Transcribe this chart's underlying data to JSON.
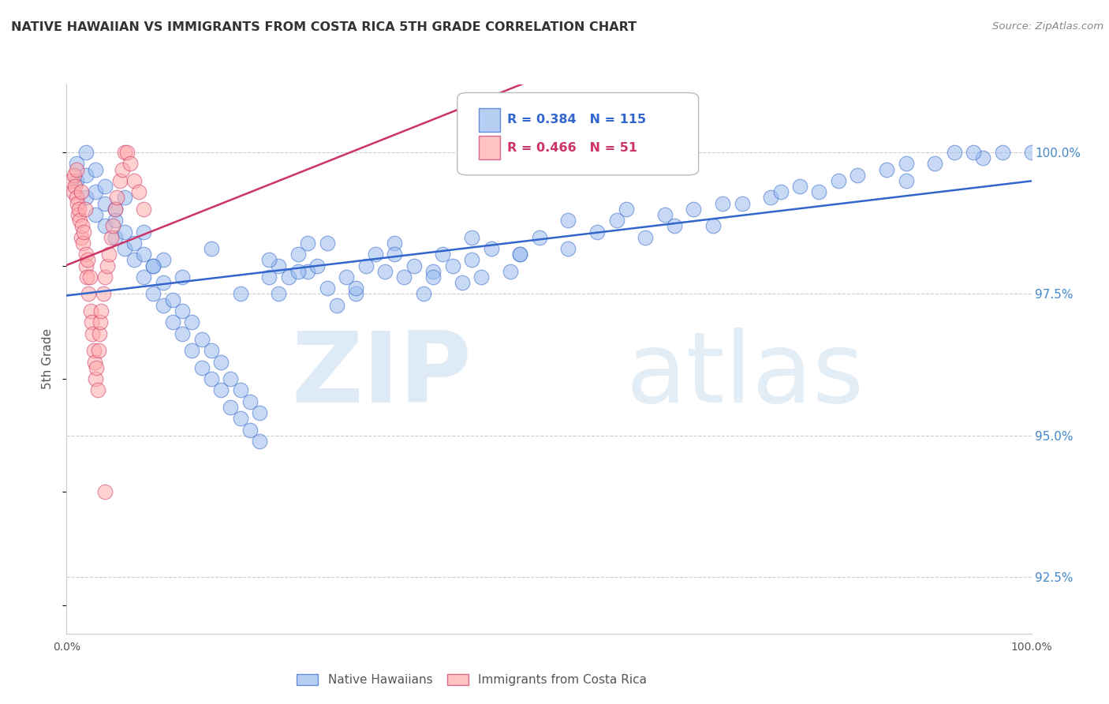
{
  "title": "NATIVE HAWAIIAN VS IMMIGRANTS FROM COSTA RICA 5TH GRADE CORRELATION CHART",
  "source": "Source: ZipAtlas.com",
  "ylabel": "5th Grade",
  "yticks": [
    92.5,
    95.0,
    97.5,
    100.0
  ],
  "xlim": [
    0.0,
    1.0
  ],
  "ylim": [
    91.5,
    101.2
  ],
  "blue_color": "#99BBEE",
  "pink_color": "#FFAAAA",
  "trendline_blue": "#3366CC",
  "trendline_pink": "#CC3366",
  "legend_text_blue": "#3366CC",
  "legend_text_pink": "#CC3366",
  "R_blue": 0.384,
  "N_blue": 115,
  "R_pink": 0.466,
  "N_pink": 51,
  "blue_scatter_x": [
    0.01,
    0.01,
    0.02,
    0.02,
    0.02,
    0.03,
    0.03,
    0.03,
    0.04,
    0.04,
    0.04,
    0.05,
    0.05,
    0.05,
    0.06,
    0.06,
    0.06,
    0.07,
    0.07,
    0.08,
    0.08,
    0.08,
    0.09,
    0.09,
    0.1,
    0.1,
    0.1,
    0.11,
    0.11,
    0.12,
    0.12,
    0.13,
    0.13,
    0.14,
    0.14,
    0.15,
    0.15,
    0.16,
    0.16,
    0.17,
    0.17,
    0.18,
    0.18,
    0.19,
    0.19,
    0.2,
    0.2,
    0.21,
    0.22,
    0.22,
    0.23,
    0.24,
    0.25,
    0.25,
    0.26,
    0.27,
    0.28,
    0.29,
    0.3,
    0.31,
    0.32,
    0.33,
    0.34,
    0.35,
    0.36,
    0.37,
    0.38,
    0.39,
    0.4,
    0.41,
    0.42,
    0.43,
    0.44,
    0.46,
    0.47,
    0.49,
    0.52,
    0.55,
    0.57,
    0.6,
    0.62,
    0.65,
    0.67,
    0.7,
    0.73,
    0.76,
    0.78,
    0.82,
    0.85,
    0.87,
    0.9,
    0.92,
    0.95,
    0.97,
    1.0,
    0.09,
    0.12,
    0.15,
    0.18,
    0.21,
    0.24,
    0.27,
    0.3,
    0.34,
    0.38,
    0.42,
    0.47,
    0.52,
    0.58,
    0.63,
    0.68,
    0.74,
    0.8,
    0.87,
    0.94
  ],
  "blue_scatter_y": [
    99.5,
    99.8,
    99.2,
    99.6,
    100.0,
    99.3,
    99.7,
    98.9,
    99.1,
    99.4,
    98.7,
    99.0,
    98.5,
    98.8,
    98.3,
    98.6,
    99.2,
    98.1,
    98.4,
    97.8,
    98.2,
    98.6,
    97.5,
    98.0,
    97.3,
    97.7,
    98.1,
    97.0,
    97.4,
    96.8,
    97.2,
    96.5,
    97.0,
    96.2,
    96.7,
    96.0,
    96.5,
    95.8,
    96.3,
    95.5,
    96.0,
    95.3,
    95.8,
    95.1,
    95.6,
    94.9,
    95.4,
    97.8,
    98.0,
    97.5,
    97.8,
    98.2,
    97.9,
    98.4,
    98.0,
    97.6,
    97.3,
    97.8,
    97.5,
    98.0,
    98.2,
    97.9,
    98.4,
    97.8,
    98.0,
    97.5,
    97.9,
    98.2,
    98.0,
    97.7,
    98.1,
    97.8,
    98.3,
    97.9,
    98.2,
    98.5,
    98.3,
    98.6,
    98.8,
    98.5,
    98.9,
    99.0,
    98.7,
    99.1,
    99.2,
    99.4,
    99.3,
    99.6,
    99.7,
    99.5,
    99.8,
    100.0,
    99.9,
    100.0,
    100.0,
    98.0,
    97.8,
    98.3,
    97.5,
    98.1,
    97.9,
    98.4,
    97.6,
    98.2,
    97.8,
    98.5,
    98.2,
    98.8,
    99.0,
    98.7,
    99.1,
    99.3,
    99.5,
    99.8,
    100.0
  ],
  "pink_scatter_x": [
    0.005,
    0.007,
    0.008,
    0.009,
    0.01,
    0.01,
    0.011,
    0.012,
    0.013,
    0.014,
    0.015,
    0.015,
    0.016,
    0.017,
    0.018,
    0.019,
    0.02,
    0.02,
    0.021,
    0.022,
    0.023,
    0.024,
    0.025,
    0.026,
    0.027,
    0.028,
    0.029,
    0.03,
    0.031,
    0.032,
    0.033,
    0.034,
    0.035,
    0.036,
    0.038,
    0.04,
    0.042,
    0.044,
    0.046,
    0.048,
    0.05,
    0.052,
    0.055,
    0.058,
    0.06,
    0.063,
    0.066,
    0.07,
    0.075,
    0.08,
    0.04
  ],
  "pink_scatter_y": [
    99.5,
    99.3,
    99.6,
    99.4,
    99.2,
    99.7,
    99.1,
    98.9,
    99.0,
    98.8,
    99.3,
    98.5,
    98.7,
    98.4,
    98.6,
    99.0,
    98.2,
    98.0,
    97.8,
    98.1,
    97.5,
    97.8,
    97.2,
    97.0,
    96.8,
    96.5,
    96.3,
    96.0,
    96.2,
    95.8,
    96.5,
    96.8,
    97.0,
    97.2,
    97.5,
    97.8,
    98.0,
    98.2,
    98.5,
    98.7,
    99.0,
    99.2,
    99.5,
    99.7,
    100.0,
    100.0,
    99.8,
    99.5,
    99.3,
    99.0,
    94.0
  ]
}
